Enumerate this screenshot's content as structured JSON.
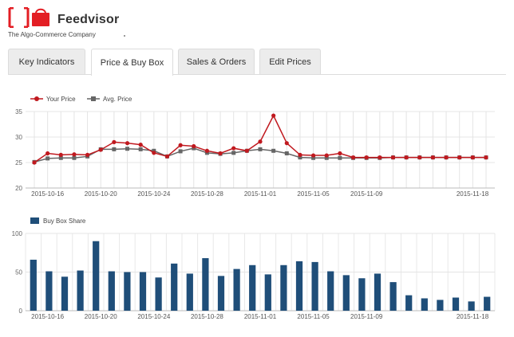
{
  "brand": {
    "name": "Feedvisor",
    "tagline": "The Algo-Commerce Company",
    "accent": "#e31e24"
  },
  "tabs": [
    {
      "label": "Key Indicators",
      "active": false
    },
    {
      "label": "Price & Buy Box",
      "active": true
    },
    {
      "label": "Sales & Orders",
      "active": false
    },
    {
      "label": "Edit Prices",
      "active": false
    }
  ],
  "chart_data": [
    {
      "type": "line",
      "ylim": [
        20,
        35
      ],
      "yticks": [
        20,
        25,
        30,
        35
      ],
      "grid": true,
      "legend": "top-left",
      "x": [
        "2015-10-15",
        "2015-10-16",
        "2015-10-17",
        "2015-10-18",
        "2015-10-19",
        "2015-10-20",
        "2015-10-21",
        "2015-10-22",
        "2015-10-23",
        "2015-10-24",
        "2015-10-25",
        "2015-10-26",
        "2015-10-27",
        "2015-10-28",
        "2015-10-29",
        "2015-10-30",
        "2015-10-31",
        "2015-11-01",
        "2015-11-02",
        "2015-11-03",
        "2015-11-04",
        "2015-11-05",
        "2015-11-06",
        "2015-11-07",
        "2015-11-08",
        "2015-11-09",
        "2015-11-10",
        "2015-11-11",
        "2015-11-12",
        "2015-11-13",
        "2015-11-14",
        "2015-11-15",
        "2015-11-16",
        "2015-11-17",
        "2015-11-18"
      ],
      "xtick_labels": [
        "2015-10-16",
        "2015-10-20",
        "2015-10-24",
        "2015-10-28",
        "2015-11-01",
        "2015-11-05",
        "2015-11-09",
        "2015-11-18"
      ],
      "series": [
        {
          "name": "Your Price",
          "color": "#c0191f",
          "marker": "circle",
          "values": [
            25.0,
            26.8,
            26.5,
            26.6,
            26.5,
            27.5,
            29.0,
            28.8,
            28.5,
            26.9,
            26.2,
            28.4,
            28.2,
            27.3,
            26.8,
            27.8,
            27.3,
            29.1,
            34.2,
            28.8,
            26.5,
            26.4,
            26.4,
            26.8,
            26.0,
            26.0,
            26.0,
            26.0,
            26.0,
            26.0,
            26.0,
            26.0,
            26.0,
            26.0,
            26.0
          ]
        },
        {
          "name": "Avg. Price",
          "color": "#666666",
          "marker": "square",
          "values": [
            25.1,
            25.8,
            25.9,
            25.9,
            26.2,
            27.6,
            27.6,
            27.7,
            27.6,
            27.3,
            26.2,
            27.2,
            27.8,
            26.9,
            26.7,
            26.9,
            27.3,
            27.6,
            27.3,
            26.8,
            26.0,
            25.9,
            25.9,
            25.9,
            25.9,
            25.9,
            25.9,
            26.0,
            26.0,
            26.0,
            26.0,
            26.0,
            26.0,
            26.0,
            26.0
          ]
        }
      ]
    },
    {
      "type": "bar",
      "ylim": [
        0,
        100
      ],
      "yticks": [
        0,
        50,
        100
      ],
      "grid": true,
      "legend": "top-left",
      "xtick_labels": [
        "2015-10-16",
        "2015-10-20",
        "2015-10-24",
        "2015-10-28",
        "2015-11-01",
        "2015-11-05",
        "2015-11-09",
        "2015-11-18"
      ],
      "series": [
        {
          "name": "Buy Box Share",
          "color": "#1f4e79",
          "values": [
            66,
            51,
            44,
            52,
            90,
            51,
            50,
            50,
            43,
            61,
            48,
            68,
            45,
            54,
            59,
            47,
            59,
            64,
            63,
            51,
            46,
            42,
            48,
            37,
            20,
            16,
            14,
            17,
            12,
            18
          ]
        }
      ]
    }
  ]
}
